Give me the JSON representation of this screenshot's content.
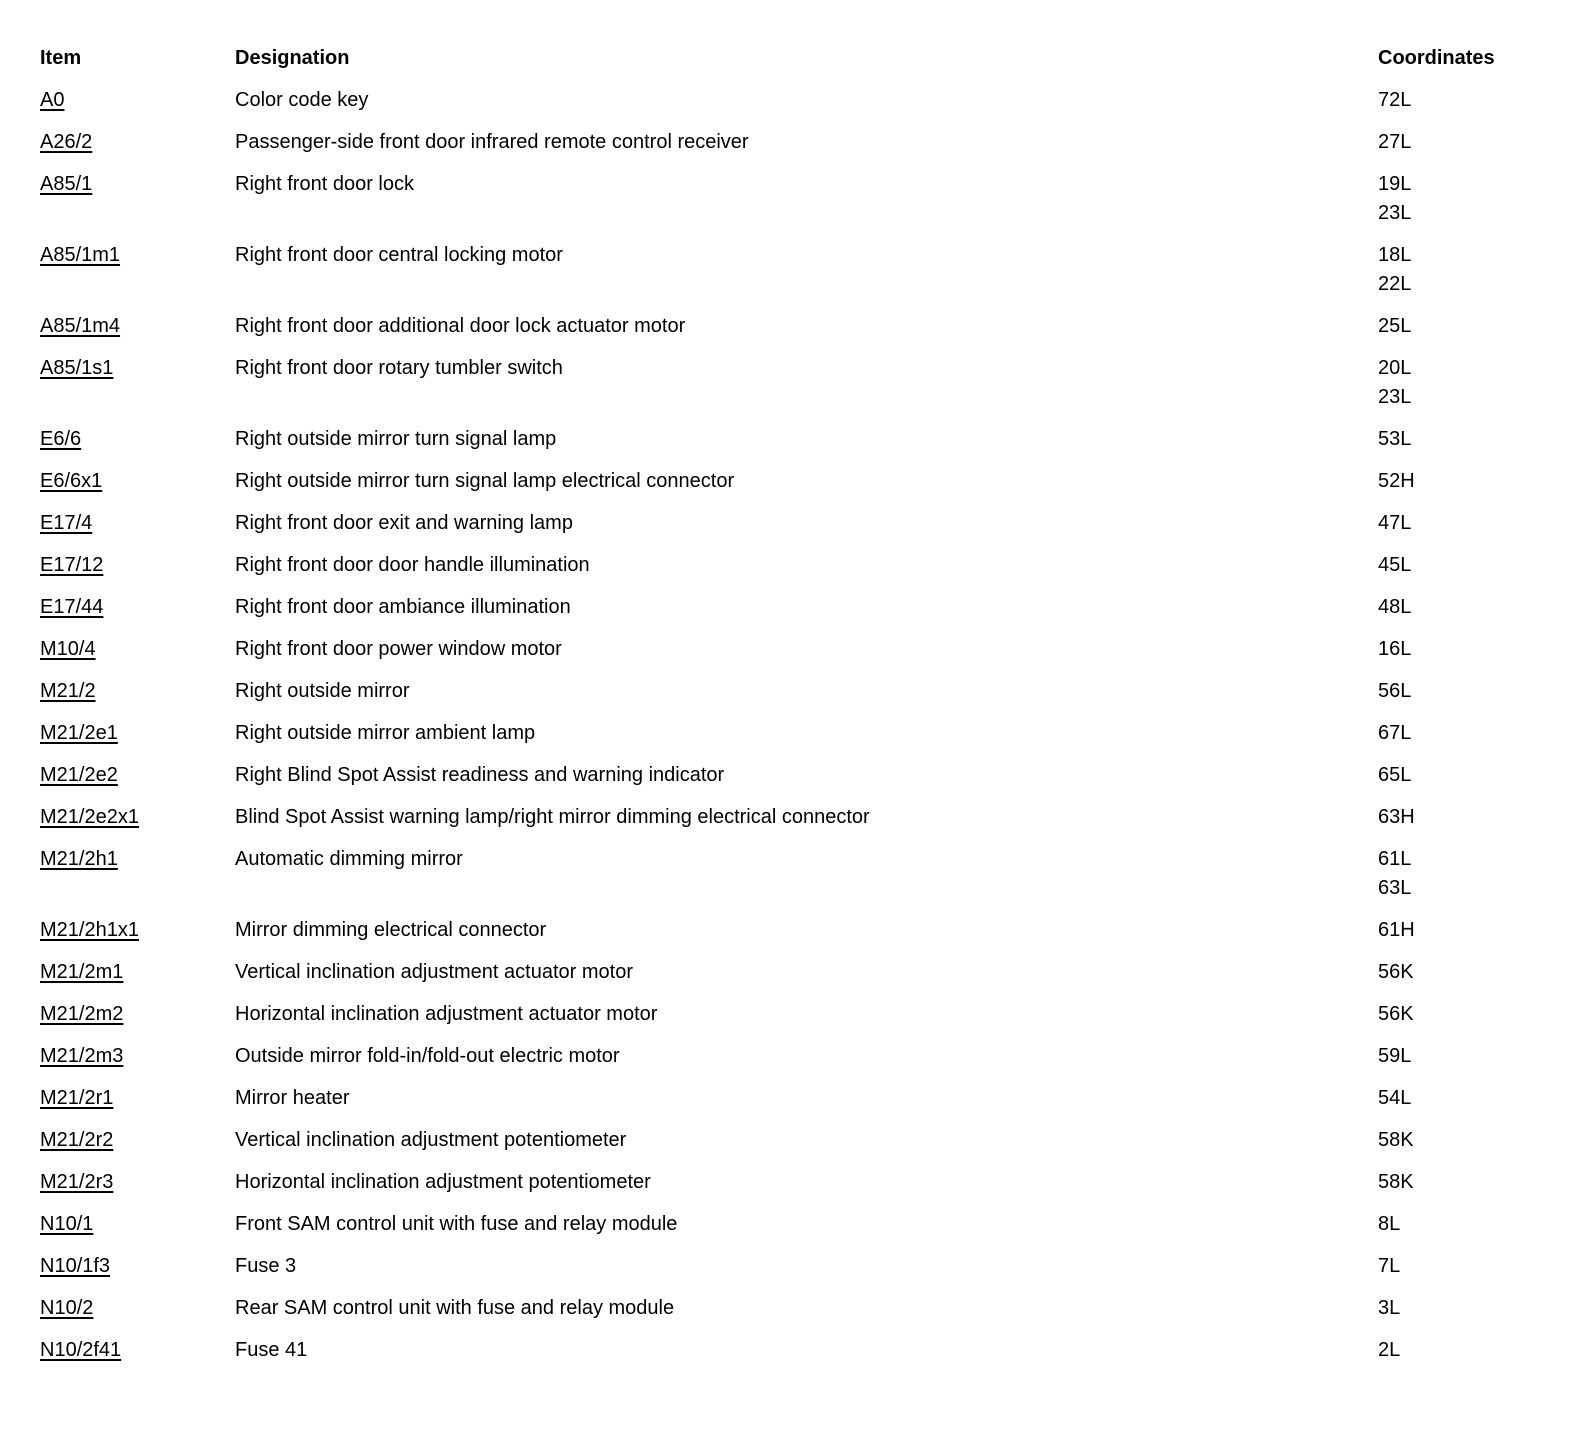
{
  "table": {
    "headers": {
      "item": "Item",
      "designation": "Designation",
      "coordinates": "Coordinates"
    },
    "rows": [
      {
        "item": "A0",
        "designation": "Color code key",
        "coordinates": [
          "72L"
        ]
      },
      {
        "item": "A26/2",
        "designation": "Passenger-side front door infrared remote control receiver",
        "coordinates": [
          "27L"
        ]
      },
      {
        "item": "A85/1",
        "designation": "Right front door lock",
        "coordinates": [
          "19L",
          "23L"
        ]
      },
      {
        "item": "A85/1m1",
        "designation": "Right front door central locking motor",
        "coordinates": [
          "18L",
          "22L"
        ]
      },
      {
        "item": "A85/1m4",
        "designation": "Right front door additional door lock actuator motor",
        "coordinates": [
          "25L"
        ]
      },
      {
        "item": "A85/1s1",
        "designation": "Right front door rotary tumbler switch",
        "coordinates": [
          "20L",
          "23L"
        ]
      },
      {
        "item": "E6/6",
        "designation": "Right outside mirror turn signal lamp",
        "coordinates": [
          "53L"
        ]
      },
      {
        "item": "E6/6x1",
        "designation": "Right outside mirror turn signal lamp electrical connector",
        "coordinates": [
          "52H"
        ]
      },
      {
        "item": "E17/4",
        "designation": "Right front door exit and warning lamp",
        "coordinates": [
          "47L"
        ]
      },
      {
        "item": "E17/12",
        "designation": "Right front door door handle illumination",
        "coordinates": [
          "45L"
        ]
      },
      {
        "item": "E17/44",
        "designation": "Right front door ambiance illumination",
        "coordinates": [
          "48L"
        ]
      },
      {
        "item": "M10/4",
        "designation": "Right front door power window motor",
        "coordinates": [
          "16L"
        ]
      },
      {
        "item": "M21/2",
        "designation": "Right outside mirror",
        "coordinates": [
          "56L"
        ]
      },
      {
        "item": "M21/2e1",
        "designation": "Right outside mirror ambient lamp",
        "coordinates": [
          "67L"
        ]
      },
      {
        "item": "M21/2e2",
        "designation": "Right Blind Spot Assist readiness and warning indicator",
        "coordinates": [
          "65L"
        ]
      },
      {
        "item": "M21/2e2x1",
        "designation": "Blind Spot Assist warning lamp/right mirror dimming electrical connector",
        "coordinates": [
          "63H"
        ]
      },
      {
        "item": "M21/2h1",
        "designation": "Automatic dimming mirror",
        "coordinates": [
          "61L",
          "63L"
        ]
      },
      {
        "item": "M21/2h1x1",
        "designation": "Mirror dimming electrical connector",
        "coordinates": [
          "61H"
        ]
      },
      {
        "item": "M21/2m1",
        "designation": "Vertical inclination adjustment actuator motor",
        "coordinates": [
          "56K"
        ]
      },
      {
        "item": "M21/2m2",
        "designation": "Horizontal inclination adjustment actuator motor",
        "coordinates": [
          "56K"
        ]
      },
      {
        "item": "M21/2m3",
        "designation": "Outside mirror fold-in/fold-out electric motor",
        "coordinates": [
          "59L"
        ]
      },
      {
        "item": "M21/2r1",
        "designation": "Mirror heater",
        "coordinates": [
          "54L"
        ]
      },
      {
        "item": "M21/2r2",
        "designation": "Vertical inclination adjustment potentiometer",
        "coordinates": [
          "58K"
        ]
      },
      {
        "item": "M21/2r3",
        "designation": "Horizontal inclination adjustment potentiometer",
        "coordinates": [
          "58K"
        ]
      },
      {
        "item": "N10/1",
        "designation": "Front SAM control unit with fuse and relay module",
        "coordinates": [
          "8L"
        ]
      },
      {
        "item": "N10/1f3",
        "designation": "Fuse 3",
        "coordinates": [
          "7L"
        ]
      },
      {
        "item": "N10/2",
        "designation": "Rear SAM control unit with fuse and relay module",
        "coordinates": [
          "3L"
        ]
      },
      {
        "item": "N10/2f41",
        "designation": "Fuse 41",
        "coordinates": [
          "2L"
        ]
      }
    ]
  }
}
